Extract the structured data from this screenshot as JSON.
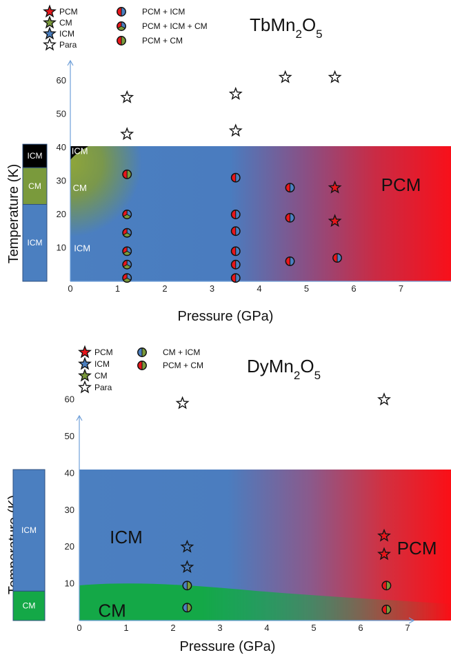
{
  "colors": {
    "pcm": "#e8161b",
    "cm_green_tb": "#7a9a3c",
    "cm_green_dy": "#14a847",
    "icm": "#4b7fc0",
    "black": "#000000",
    "axis": "#6f9fd8"
  },
  "chart_data": [
    {
      "type": "scatter",
      "title_base": "TbMn",
      "title_sub1": "2",
      "title_mid": "O",
      "title_sub2": "5",
      "xlabel": "Pressure (GPa)",
      "ylabel": "Temperature (K)",
      "xlim": [
        0,
        8
      ],
      "ylim": [
        0,
        68
      ],
      "x_ticks": [
        "0",
        "1",
        "2",
        "3",
        "4",
        "5",
        "6",
        "7"
      ],
      "y_ticks": [
        "10",
        "20",
        "30",
        "40",
        "50",
        "60"
      ],
      "legend_stars": [
        {
          "label": "PCM",
          "color": "#e8161b"
        },
        {
          "label": "CM",
          "color": "#7a9a3c"
        },
        {
          "label": "ICM",
          "color": "#4b7fc0"
        },
        {
          "label": "Para",
          "color": "#ffffff"
        }
      ],
      "legend_circles": [
        {
          "label": "PCM + ICM",
          "kind": "pcm-icm"
        },
        {
          "label": "PCM + ICM + CM",
          "kind": "pcm-icm-cm"
        },
        {
          "label": "PCM + CM",
          "kind": "pcm-cm"
        }
      ],
      "ambient_bar": [
        {
          "label": "ICM",
          "from": 0,
          "to": 23,
          "color": "#4b7fc0"
        },
        {
          "label": "CM",
          "from": 23,
          "to": 34,
          "color": "#7a9a3c"
        },
        {
          "label": "ICM",
          "from": 34,
          "to": 41,
          "color": "#000000"
        }
      ],
      "region_labels": [
        {
          "text": "ICM",
          "x": 0.2,
          "y": 38,
          "size": "small"
        },
        {
          "text": "CM",
          "x": 0.2,
          "y": 27,
          "size": "small"
        },
        {
          "text": "ICM",
          "x": 0.25,
          "y": 9,
          "size": "small"
        },
        {
          "text": "PCM",
          "x": 7.0,
          "y": 27,
          "size": "big"
        }
      ],
      "points": [
        {
          "x": 1.2,
          "y": 55,
          "kind": "star",
          "phase": "Para"
        },
        {
          "x": 1.2,
          "y": 44,
          "kind": "star",
          "phase": "Para"
        },
        {
          "x": 3.5,
          "y": 56,
          "kind": "star",
          "phase": "Para"
        },
        {
          "x": 3.5,
          "y": 45,
          "kind": "star",
          "phase": "Para"
        },
        {
          "x": 4.55,
          "y": 61,
          "kind": "star",
          "phase": "Para"
        },
        {
          "x": 5.6,
          "y": 61,
          "kind": "star",
          "phase": "Para"
        },
        {
          "x": 5.6,
          "y": 28,
          "kind": "star",
          "phase": "PCM"
        },
        {
          "x": 5.6,
          "y": 18,
          "kind": "star",
          "phase": "PCM"
        },
        {
          "x": 1.2,
          "y": 32,
          "kind": "pcm-cm"
        },
        {
          "x": 1.2,
          "y": 20,
          "kind": "pcm-icm-cm"
        },
        {
          "x": 1.2,
          "y": 14.5,
          "kind": "pcm-icm-cm"
        },
        {
          "x": 1.2,
          "y": 9,
          "kind": "pcm-icm-cm"
        },
        {
          "x": 1.2,
          "y": 5,
          "kind": "pcm-icm-cm"
        },
        {
          "x": 1.2,
          "y": 1,
          "kind": "pcm-icm-cm"
        },
        {
          "x": 3.5,
          "y": 31,
          "kind": "pcm-icm"
        },
        {
          "x": 3.5,
          "y": 20,
          "kind": "pcm-icm"
        },
        {
          "x": 3.5,
          "y": 15,
          "kind": "pcm-icm"
        },
        {
          "x": 3.5,
          "y": 9,
          "kind": "pcm-icm"
        },
        {
          "x": 3.5,
          "y": 5,
          "kind": "pcm-icm"
        },
        {
          "x": 3.5,
          "y": 1,
          "kind": "pcm-icm"
        },
        {
          "x": 4.65,
          "y": 28,
          "kind": "pcm-icm"
        },
        {
          "x": 4.65,
          "y": 19,
          "kind": "pcm-icm"
        },
        {
          "x": 4.65,
          "y": 6,
          "kind": "pcm-icm"
        },
        {
          "x": 5.65,
          "y": 7,
          "kind": "pcm-icm"
        }
      ]
    },
    {
      "type": "scatter",
      "title_base": "DyMn",
      "title_sub1": "2",
      "title_mid": "O",
      "title_sub2": "5",
      "xlabel": "Pressure (GPa)",
      "ylabel": "Temperature (K)",
      "xlim": [
        0,
        8
      ],
      "ylim": [
        0,
        68
      ],
      "x_ticks": [
        "0",
        "1",
        "2",
        "3",
        "4",
        "5",
        "6",
        "7"
      ],
      "y_ticks": [
        "10",
        "20",
        "30",
        "40",
        "50",
        "60"
      ],
      "legend_stars": [
        {
          "label": "PCM",
          "color": "#e8161b"
        },
        {
          "label": "ICM",
          "color": "#4b7fc0"
        },
        {
          "label": "CM",
          "color": "#7a9a3c"
        },
        {
          "label": "Para",
          "color": "#ffffff"
        }
      ],
      "legend_circles": [
        {
          "label": "CM + ICM",
          "kind": "cm-icm"
        },
        {
          "label": "PCM + CM",
          "kind": "pcm-cm"
        }
      ],
      "ambient_bar": [
        {
          "label": "CM",
          "from": 0,
          "to": 8,
          "color": "#14a847"
        },
        {
          "label": "ICM",
          "from": 8,
          "to": 41,
          "color": "#4b7fc0"
        }
      ],
      "region_labels": [
        {
          "text": "ICM",
          "x": 1.0,
          "y": 21,
          "size": "big"
        },
        {
          "text": "CM",
          "x": 0.7,
          "y": 1,
          "size": "big"
        },
        {
          "text": "PCM",
          "x": 7.2,
          "y": 18,
          "size": "big"
        }
      ],
      "points": [
        {
          "x": 2.2,
          "y": 59,
          "kind": "star",
          "phase": "Para"
        },
        {
          "x": 6.5,
          "y": 60,
          "kind": "star",
          "phase": "Para"
        },
        {
          "x": 2.3,
          "y": 20,
          "kind": "star",
          "phase": "ICM"
        },
        {
          "x": 2.3,
          "y": 14.5,
          "kind": "star",
          "phase": "ICM"
        },
        {
          "x": 2.3,
          "y": 9.5,
          "kind": "cm-icm"
        },
        {
          "x": 2.3,
          "y": 3.5,
          "kind": "cm-icm"
        },
        {
          "x": 6.5,
          "y": 23,
          "kind": "star",
          "phase": "PCM"
        },
        {
          "x": 6.5,
          "y": 18,
          "kind": "star",
          "phase": "PCM"
        },
        {
          "x": 6.55,
          "y": 9.5,
          "kind": "pcm-cm"
        },
        {
          "x": 6.55,
          "y": 3,
          "kind": "pcm-cm"
        }
      ]
    }
  ]
}
